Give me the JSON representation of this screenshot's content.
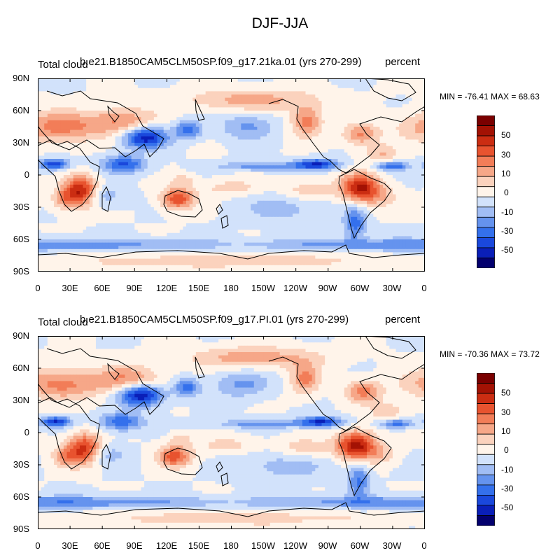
{
  "main_title": "DJF-JJA",
  "colors": {
    "palette": [
      "#03006e",
      "#0a1fb8",
      "#1a48dc",
      "#3470ec",
      "#6593ee",
      "#a1bdf4",
      "#d2e2fb",
      "#fff4ea",
      "#fbd2bd",
      "#f6a788",
      "#f27d58",
      "#e8532f",
      "#cb2d12",
      "#a31204",
      "#7a0000"
    ],
    "coast": "#000000"
  },
  "panels": [
    {
      "id": "top",
      "left_label": "Total cloud",
      "center_label": "b.e21.B1850CAM5CLM50SP.f09_g17.21ka.01 (yrs 270-299)",
      "right_label": "percent",
      "stats": "MIN = -76.41 MAX =  68.63",
      "field": {
        "min": -76.41,
        "max": 68.63
      }
    },
    {
      "id": "bottom",
      "left_label": "Total cloud",
      "center_label": "b.e21.B1850CAM5CLM50SP.f09_g17.PI.01 (yrs 270-299)",
      "right_label": "percent",
      "stats": "MIN = -70.36 MAX =  73.72",
      "field": {
        "min": -70.36,
        "max": 73.72
      }
    }
  ],
  "y_ticks": [
    "90N",
    "60N",
    "30N",
    "0",
    "30S",
    "60S",
    "90S"
  ],
  "x_ticks": [
    "0",
    "30E",
    "60E",
    "90E",
    "120E",
    "150E",
    "180",
    "150W",
    "120W",
    "90W",
    "60W",
    "30W",
    "0"
  ],
  "colorbar_labels": [
    "50",
    "30",
    "10",
    "0",
    "-10",
    "-30",
    "-50"
  ]
}
